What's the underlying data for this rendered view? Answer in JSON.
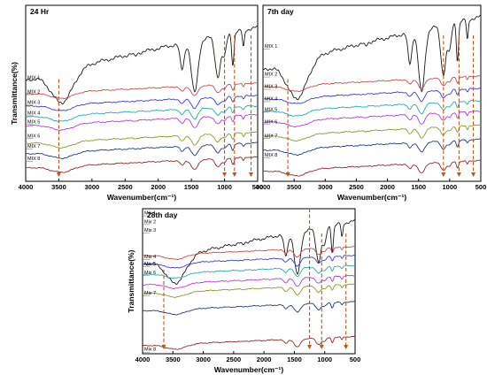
{
  "chart_data": [
    {
      "type": "line",
      "title": "24 Hr",
      "xlabel": "Wavenumber(cm⁻¹)",
      "ylabel": "Transmittance(%)",
      "xlim": [
        4000,
        500
      ],
      "x_reversed": true,
      "x_ticks": [
        "4000",
        "3500",
        "3000",
        "2500",
        "2000",
        "1500",
        "1000",
        "500"
      ],
      "legend": [
        "MIX 1",
        "MIX 2",
        "MIX 3",
        "MIX 4",
        "MIX 5",
        "MIX 6",
        "MIX 7",
        "MIX 8"
      ],
      "marker_lines_cm": [
        3500,
        1000,
        850,
        600
      ]
    },
    {
      "type": "line",
      "title": "7th day",
      "xlabel": "Wavenumber(cm⁻¹)",
      "ylabel": "",
      "xlim": [
        4000,
        500
      ],
      "x_reversed": true,
      "x_ticks": [
        "4000",
        "3500",
        "3000",
        "2500",
        "2000",
        "1500",
        "1000",
        "500"
      ],
      "legend": [
        "MIX 1",
        "MIX 2",
        "MIX 3",
        "MIX 4",
        "MIX 5",
        "MIX 6",
        "MIX 7",
        "MIX 8"
      ],
      "marker_lines_cm": [
        3600,
        1100,
        850,
        620
      ]
    },
    {
      "type": "line",
      "title": "28th day",
      "xlabel": "Wavenumber(cm⁻¹)",
      "ylabel": "Transmittance(%)",
      "xlim": [
        4000,
        500
      ],
      "x_reversed": true,
      "x_ticks": [
        "4000",
        "3500",
        "3000",
        "2500",
        "2000",
        "1500",
        "1000",
        "500"
      ],
      "legend": [
        "Mix 1",
        "Mix 2",
        "Mix 3",
        "Mix 4",
        "Mix 5",
        "Mix 6",
        "Mix 7",
        "Mix 8"
      ],
      "marker_lines_cm": [
        3650,
        1250,
        1050,
        650
      ]
    }
  ],
  "colors": {
    "series": [
      "#1a1a1a",
      "#c0504d",
      "#3c3ccf",
      "#2aa8a8",
      "#b03ed0",
      "#8a9a2a",
      "#1f3a7a",
      "#8b2a2a"
    ],
    "marker": "#c0541a",
    "frame": "#000000"
  }
}
